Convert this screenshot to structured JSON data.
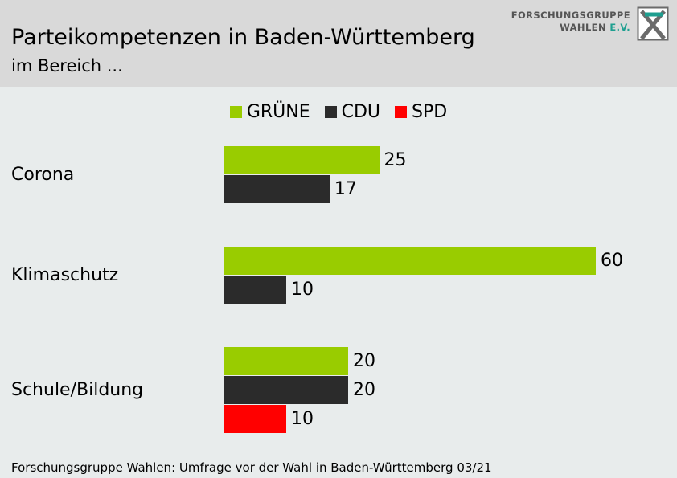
{
  "header": {
    "title": "Parteikompetenzen in Baden-Württemberg",
    "subtitle": "im Bereich ..."
  },
  "logo": {
    "line1": "FORSCHUNGSGRUPPE",
    "line2_main": "WAHLEN",
    "line2_suffix": "E.V."
  },
  "legend": [
    {
      "label": "GRÜNE",
      "color": "#99cc00"
    },
    {
      "label": "CDU",
      "color": "#2b2b2b"
    },
    {
      "label": "SPD",
      "color": "#ff0000"
    }
  ],
  "footer": {
    "source": "Forschungsgruppe Wahlen: Umfrage vor der Wahl in Baden-Württemberg 03/21"
  },
  "chart_data": {
    "type": "bar",
    "orientation": "horizontal",
    "title": "Parteikompetenzen in Baden-Württemberg",
    "subtitle": "im Bereich ...",
    "xlim": [
      0,
      60
    ],
    "grid": false,
    "legend_position": "top",
    "categories": [
      "Corona",
      "Klimaschutz",
      "Schule/Bildung"
    ],
    "series": [
      {
        "name": "GRÜNE",
        "color": "#99cc00",
        "values": [
          25,
          60,
          20
        ]
      },
      {
        "name": "CDU",
        "color": "#2b2b2b",
        "values": [
          17,
          10,
          20
        ]
      },
      {
        "name": "SPD",
        "color": "#ff0000",
        "values": [
          null,
          null,
          10
        ]
      }
    ]
  }
}
